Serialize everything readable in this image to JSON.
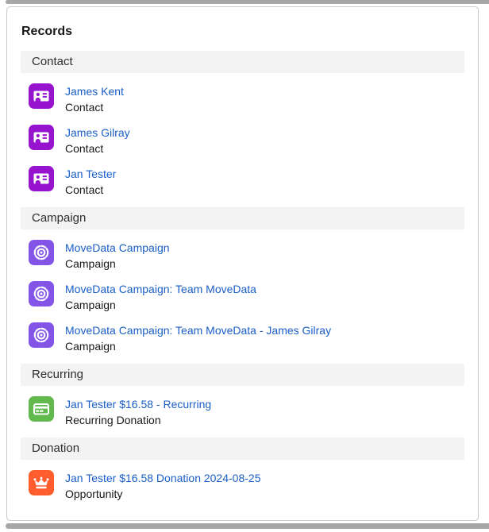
{
  "header": {
    "title": "Records"
  },
  "colors": {
    "link": "#1a5ec8",
    "section_header_bg": "#f3f3f3",
    "card_border": "#c9c9c9",
    "scrollbar_gray": "#a7a7a7",
    "icon_contact": "#9614cd",
    "icon_campaign": "#8255e6",
    "icon_recurring": "#62ba4f",
    "icon_opportunity": "#ff5d2d"
  },
  "sections": [
    {
      "label": "Contact",
      "items": [
        {
          "title": "James Kent",
          "subtitle": "Contact",
          "icon": "contact-card-icon",
          "icon_kind": "contact"
        },
        {
          "title": "James Gilray",
          "subtitle": "Contact",
          "icon": "contact-card-icon",
          "icon_kind": "contact"
        },
        {
          "title": "Jan Tester",
          "subtitle": "Contact",
          "icon": "contact-card-icon",
          "icon_kind": "contact"
        }
      ]
    },
    {
      "label": "Campaign",
      "items": [
        {
          "title": "MoveData Campaign",
          "subtitle": "Campaign",
          "icon": "campaign-bullseye-icon",
          "icon_kind": "campaign"
        },
        {
          "title": "MoveData Campaign: Team MoveData",
          "subtitle": "Campaign",
          "icon": "campaign-bullseye-icon",
          "icon_kind": "campaign"
        },
        {
          "title": "MoveData Campaign: Team MoveData - James Gilray",
          "subtitle": "Campaign",
          "icon": "campaign-bullseye-icon",
          "icon_kind": "campaign"
        }
      ]
    },
    {
      "label": "Recurring",
      "items": [
        {
          "title": "Jan Tester $16.58 - Recurring",
          "subtitle": "Recurring Donation",
          "icon": "credit-card-icon",
          "icon_kind": "recurring"
        }
      ]
    },
    {
      "label": "Donation",
      "items": [
        {
          "title": "Jan Tester $16.58 Donation 2024-08-25",
          "subtitle": "Opportunity",
          "icon": "crown-icon",
          "icon_kind": "opportunity"
        }
      ]
    }
  ]
}
